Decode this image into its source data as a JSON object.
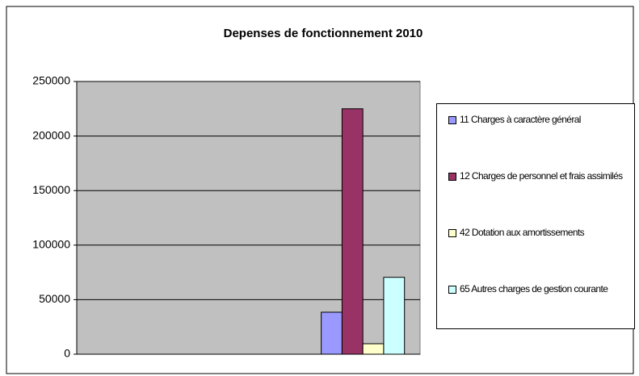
{
  "chart_data": {
    "type": "bar",
    "title": "Depenses de fonctionnement 2010",
    "categories": [
      null,
      null,
      null
    ],
    "series": [
      {
        "name": "11 Charges à caractère général",
        "color": "#9999ff",
        "values": [
          null,
          null,
          38500
        ]
      },
      {
        "name": "12 Charges de personnel et frais assimilés",
        "color": "#993366",
        "values": [
          null,
          null,
          225000
        ]
      },
      {
        "name": "42 Dotation aux amortissements",
        "color": "#ffffcc",
        "values": [
          null,
          null,
          9600
        ]
      },
      {
        "name": "65 Autres charges de gestion courante",
        "color": "#ccffff",
        "values": [
          null,
          null,
          70500
        ]
      }
    ],
    "ylim": [
      0,
      250000
    ],
    "yticks": [
      0,
      50000,
      100000,
      150000,
      200000,
      250000
    ],
    "grid": true
  }
}
